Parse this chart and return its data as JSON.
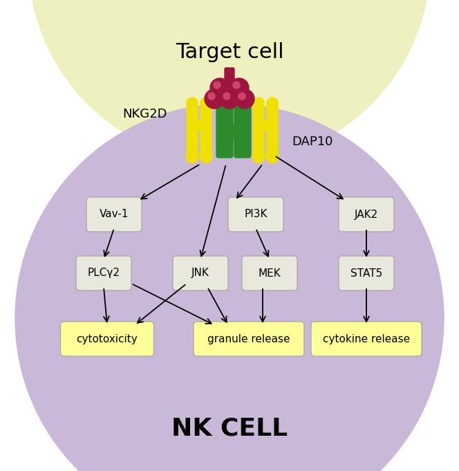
{
  "bg_color": "#ffffff",
  "target_cell_color": "#eef0c0",
  "nk_cell_color": "#c9b8d8",
  "box_color": "#e8e8dc",
  "yellow_box_color": "#ffff99",
  "green_receptor_color": "#2d8a2d",
  "yellow_receptor_color": "#f0e000",
  "red_ligand_color": "#9e1540",
  "title_target": "Target cell",
  "title_nk": "NK CELL",
  "label_nkg2d": "NKG2D",
  "label_dap10": "DAP10",
  "figsize": [
    6.64,
    6.81
  ],
  "dpi": 100
}
